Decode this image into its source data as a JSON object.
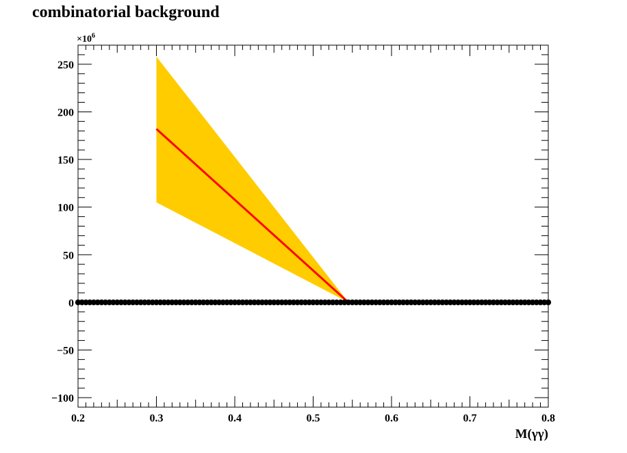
{
  "title": "combinatorial background",
  "chart_data": {
    "type": "line",
    "title": "combinatorial background",
    "xlabel": "M(γγ)",
    "ylabel": "",
    "y_multiplier": "×10",
    "y_multiplier_exponent": "6",
    "xlim": [
      0.2,
      0.8
    ],
    "ylim": [
      -110,
      270
    ],
    "x_ticks": [
      0.2,
      0.3,
      0.4,
      0.5,
      0.6,
      0.7,
      0.8
    ],
    "x_tick_labels": [
      "0.2",
      "0.3",
      "0.4",
      "0.5",
      "0.6",
      "0.7",
      "0.8"
    ],
    "y_ticks": [
      -100,
      -50,
      0,
      50,
      100,
      150,
      200,
      250
    ],
    "y_tick_labels": [
      "−100",
      "−50",
      "0",
      "50",
      "100",
      "150",
      "200",
      "250"
    ],
    "grid": false,
    "series": [
      {
        "kind": "band",
        "color": "#ffcc00",
        "x": [
          0.3,
          0.545
        ],
        "upper": [
          258,
          0
        ],
        "lower": [
          105,
          0
        ]
      },
      {
        "kind": "line",
        "color": "#ff0000",
        "x": [
          0.3,
          0.545
        ],
        "y": [
          182,
          0
        ]
      },
      {
        "kind": "points",
        "color": "#000000",
        "x_start": 0.2,
        "x_end": 0.8,
        "x_step": 0.005,
        "y": 0
      }
    ]
  }
}
